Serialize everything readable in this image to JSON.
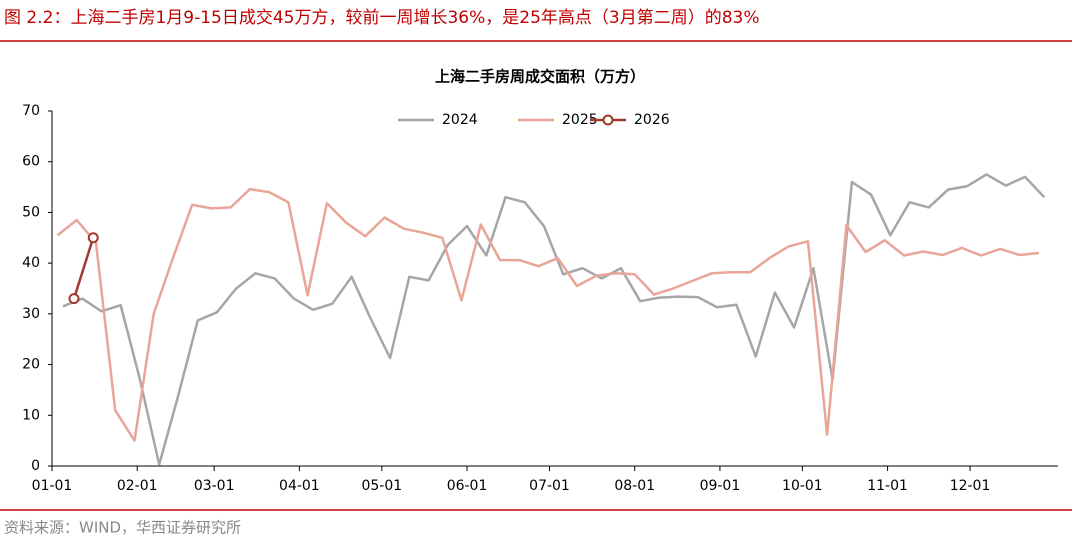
{
  "header": {
    "title": "图 2.2：上海二手房1月9-15日成交45万方，较前一周增长36%，是25年高点（3月第二周）的83%"
  },
  "chart_data": {
    "type": "line",
    "title": "上海二手房周成交面积（万方）",
    "xlim": [
      0,
      366
    ],
    "xticks": [
      {
        "value": 0,
        "label": "01-01"
      },
      {
        "value": 31,
        "label": "02-01"
      },
      {
        "value": 59,
        "label": "03-01"
      },
      {
        "value": 90,
        "label": "04-01"
      },
      {
        "value": 120,
        "label": "05-01"
      },
      {
        "value": 151,
        "label": "06-01"
      },
      {
        "value": 181,
        "label": "07-01"
      },
      {
        "value": 212,
        "label": "08-01"
      },
      {
        "value": 243,
        "label": "09-01"
      },
      {
        "value": 273,
        "label": "10-01"
      },
      {
        "value": 304,
        "label": "11-01"
      },
      {
        "value": 334,
        "label": "12-01"
      }
    ],
    "ylim": [
      0,
      70
    ],
    "yticks": [
      0,
      10,
      20,
      30,
      40,
      50,
      60,
      70
    ],
    "legend": "top",
    "series": [
      {
        "name": "2024",
        "color": "#a6a6a6",
        "x": [
          4,
          11,
          18,
          25,
          32,
          39,
          46,
          53,
          60,
          67,
          74,
          81,
          88,
          95,
          102,
          109,
          116,
          123,
          130,
          137,
          144,
          151,
          158,
          165,
          172,
          179,
          186,
          193,
          200,
          207,
          214,
          221,
          228,
          235,
          242,
          249,
          256,
          263,
          270,
          277,
          284,
          291,
          298,
          305,
          312,
          319,
          326,
          333,
          340,
          347,
          354,
          361
        ],
        "values": [
          31.5,
          33,
          30.5,
          31.7,
          17,
          0.3,
          14,
          28.7,
          30.3,
          35,
          38,
          37,
          33,
          30.8,
          32,
          37.3,
          29,
          21.3,
          37.3,
          36.6,
          43.6,
          47.3,
          41.5,
          53,
          52,
          47.3,
          37.8,
          39,
          37,
          39,
          32.5,
          33.2,
          33.4,
          33.3,
          31.3,
          31.8,
          21.6,
          34.2,
          27.3,
          39,
          17,
          56,
          53.5,
          45.5,
          52,
          51,
          54.5,
          55.2,
          57.5,
          55.3,
          57,
          53
        ]
      },
      {
        "name": "2025",
        "color": "#e8a598",
        "x": [
          2,
          9,
          16,
          23,
          30,
          37,
          44,
          51,
          58,
          65,
          72,
          79,
          86,
          93,
          100,
          107,
          114,
          121,
          128,
          135,
          142,
          149,
          156,
          163,
          170,
          177,
          184,
          191,
          198,
          205,
          212,
          219,
          226,
          233,
          240,
          247,
          254,
          261,
          268,
          275,
          282,
          289,
          296,
          303,
          310,
          317,
          324,
          331,
          338,
          345,
          352,
          359
        ],
        "values": [
          45.5,
          48.5,
          44,
          11,
          5,
          30,
          41,
          51.5,
          50.8,
          51,
          54.6,
          54,
          52,
          33.7,
          51.8,
          48,
          45.3,
          49,
          46.8,
          46,
          45,
          32.7,
          47.6,
          40.6,
          40.6,
          39.4,
          41,
          35.5,
          37.5,
          38,
          37.8,
          33.8,
          35,
          36.5,
          38,
          38.2,
          38.2,
          41,
          43.3,
          44.3,
          6.2,
          47.5,
          42.2,
          44.5,
          41.5,
          42.3,
          41.6,
          43,
          41.5,
          42.8,
          41.6,
          42
        ]
      },
      {
        "name": "2026",
        "color": "#a0392e",
        "marker": "circle",
        "x": [
          8,
          15
        ],
        "values": [
          33,
          45
        ]
      }
    ]
  },
  "source": "资料来源：WIND，华西证券研究所"
}
